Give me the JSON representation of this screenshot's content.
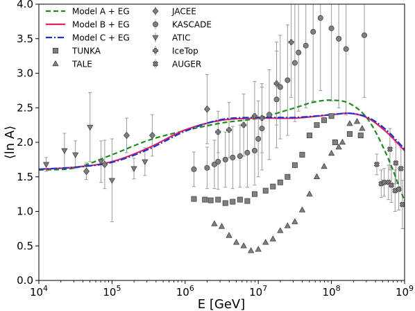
{
  "chart_data": {
    "type": "scatter",
    "title": "",
    "xlabel": "E [GeV]",
    "ylabel": "⟨ln A⟩",
    "xscale": "log",
    "xlim": [
      10000,
      1000000000
    ],
    "ylim": [
      0.0,
      4.0
    ],
    "x_ticks": [
      {
        "value": 10000,
        "base": "10",
        "exp": "4"
      },
      {
        "value": 100000,
        "base": "10",
        "exp": "5"
      },
      {
        "value": 1000000,
        "base": "10",
        "exp": "6"
      },
      {
        "value": 10000000,
        "base": "10",
        "exp": "7"
      },
      {
        "value": 100000000,
        "base": "10",
        "exp": "8"
      },
      {
        "value": 1000000000,
        "base": "10",
        "exp": "9"
      }
    ],
    "y_ticks": [
      "0.0",
      "0.5",
      "1.0",
      "1.5",
      "2.0",
      "2.5",
      "3.0",
      "3.5",
      "4.0"
    ],
    "grid": false,
    "legend_position": "top-left",
    "models": [
      {
        "name": "Model A + EG",
        "color": "#1a8c1a",
        "dash": "dashed",
        "points": [
          [
            4.0,
            1.6
          ],
          [
            4.5,
            1.63
          ],
          [
            5.0,
            1.82
          ],
          [
            5.5,
            2.03
          ],
          [
            6.0,
            2.17
          ],
          [
            6.5,
            2.28
          ],
          [
            7.0,
            2.35
          ],
          [
            7.5,
            2.5
          ],
          [
            7.75,
            2.58
          ],
          [
            8.0,
            2.61
          ],
          [
            8.25,
            2.56
          ],
          [
            8.5,
            2.33
          ],
          [
            8.75,
            1.83
          ],
          [
            9.0,
            1.15
          ]
        ]
      },
      {
        "name": "Model B + EG",
        "color": "#e0245e",
        "dash": "solid",
        "points": [
          [
            4.0,
            1.61
          ],
          [
            4.5,
            1.64
          ],
          [
            5.0,
            1.72
          ],
          [
            5.5,
            1.92
          ],
          [
            6.0,
            2.18
          ],
          [
            6.5,
            2.32
          ],
          [
            7.0,
            2.35
          ],
          [
            7.5,
            2.35
          ],
          [
            8.0,
            2.4
          ],
          [
            8.25,
            2.42
          ],
          [
            8.5,
            2.35
          ],
          [
            8.75,
            2.15
          ],
          [
            9.0,
            1.88
          ]
        ]
      },
      {
        "name": "Model C + EG",
        "color": "#1c2fd6",
        "dash": "dashdot",
        "points": [
          [
            4.0,
            1.61
          ],
          [
            4.5,
            1.64
          ],
          [
            5.0,
            1.71
          ],
          [
            5.5,
            1.9
          ],
          [
            6.0,
            2.16
          ],
          [
            6.5,
            2.33
          ],
          [
            7.0,
            2.36
          ],
          [
            7.5,
            2.36
          ],
          [
            8.0,
            2.4
          ],
          [
            8.25,
            2.42
          ],
          [
            8.5,
            2.36
          ],
          [
            8.75,
            2.18
          ],
          [
            9.0,
            1.9
          ]
        ]
      }
    ],
    "datasets": [
      {
        "name": "TUNKA",
        "marker": "square",
        "points": [
          [
            6.12,
            1.18
          ],
          [
            6.27,
            1.17
          ],
          [
            6.35,
            1.16
          ],
          [
            6.45,
            1.17
          ],
          [
            6.55,
            1.12
          ],
          [
            6.65,
            1.14
          ],
          [
            6.75,
            1.17
          ],
          [
            6.85,
            1.15
          ],
          [
            6.95,
            1.25
          ],
          [
            7.1,
            1.3
          ],
          [
            7.2,
            1.36
          ],
          [
            7.3,
            1.42
          ],
          [
            7.4,
            1.5
          ],
          [
            7.5,
            1.67
          ],
          [
            7.6,
            1.82
          ],
          [
            7.7,
            2.1
          ],
          [
            7.8,
            2.25
          ],
          [
            8.05,
            2.0
          ],
          [
            8.25,
            2.12
          ],
          [
            8.4,
            2.1
          ],
          [
            7.9,
            2.32
          ],
          [
            8.0,
            2.38
          ]
        ]
      },
      {
        "name": "TALE",
        "marker": "triangle-up",
        "points": [
          [
            6.4,
            0.82
          ],
          [
            6.5,
            0.78
          ],
          [
            6.6,
            0.65
          ],
          [
            6.7,
            0.55
          ],
          [
            6.8,
            0.5
          ],
          [
            6.9,
            0.43
          ],
          [
            7.0,
            0.45
          ],
          [
            7.1,
            0.55
          ],
          [
            7.2,
            0.6
          ],
          [
            7.3,
            0.72
          ],
          [
            7.4,
            0.79
          ],
          [
            7.5,
            0.85
          ],
          [
            7.6,
            1.02
          ],
          [
            7.7,
            1.25
          ],
          [
            7.8,
            1.5
          ],
          [
            7.9,
            1.65
          ],
          [
            8.0,
            1.84
          ],
          [
            8.1,
            1.93
          ],
          [
            8.15,
            2.0
          ],
          [
            8.25,
            2.27
          ],
          [
            8.35,
            2.3
          ],
          [
            8.42,
            2.2
          ]
        ]
      },
      {
        "name": "JACEE",
        "marker": "diamond",
        "points": [
          [
            4.65,
            1.58,
            0.12
          ],
          [
            4.9,
            1.68,
            0.35
          ],
          [
            5.2,
            2.1,
            0.25
          ],
          [
            5.55,
            2.1,
            0.3
          ],
          [
            6.3,
            2.48,
            0.5
          ]
        ]
      },
      {
        "name": "KASCADE",
        "marker": "circle",
        "points": [
          [
            6.12,
            1.61,
            0.25
          ],
          [
            6.3,
            1.63,
            0.3
          ],
          [
            6.4,
            1.68,
            0.35
          ],
          [
            6.45,
            1.72,
            0.4
          ],
          [
            6.55,
            1.75,
            0.4
          ],
          [
            6.65,
            1.78,
            0.45
          ],
          [
            6.75,
            1.8,
            0.45
          ],
          [
            6.85,
            1.85,
            0.5
          ],
          [
            6.95,
            1.88,
            0.5
          ],
          [
            7.0,
            2.05,
            0.55
          ],
          [
            7.05,
            2.2,
            0.6
          ],
          [
            7.15,
            2.4,
            0.65
          ],
          [
            7.25,
            2.62,
            0.7
          ],
          [
            7.3,
            2.8,
            0.75
          ],
          [
            7.4,
            2.9,
            0.8
          ],
          [
            7.5,
            3.15,
            0.85
          ],
          [
            7.55,
            3.3,
            0.85
          ],
          [
            7.65,
            3.4,
            0.9
          ],
          [
            7.75,
            3.6,
            1.0
          ],
          [
            7.85,
            3.8,
            1.05
          ],
          [
            8.0,
            3.65,
            1.05
          ],
          [
            8.1,
            3.5,
            1.0
          ],
          [
            8.2,
            3.35,
            0.95
          ],
          [
            8.45,
            3.55,
            0.9
          ]
        ]
      },
      {
        "name": "ATIC",
        "marker": "triangle-down",
        "points": [
          [
            4.1,
            1.68,
            0.1
          ],
          [
            4.35,
            1.88,
            0.25
          ],
          [
            4.5,
            1.82,
            0.2
          ],
          [
            4.7,
            2.22,
            0.5
          ],
          [
            4.85,
            1.72,
            0.3
          ],
          [
            5.0,
            1.45,
            0.6
          ],
          [
            5.3,
            1.62,
            0.15
          ],
          [
            5.45,
            1.72,
            0.2
          ]
        ]
      },
      {
        "name": "IceTop",
        "marker": "plus",
        "points": [
          [
            6.45,
            2.15,
            0.3
          ],
          [
            6.6,
            2.18,
            0.4
          ],
          [
            6.8,
            2.25,
            0.45
          ],
          [
            6.95,
            2.38,
            0.5
          ],
          [
            7.05,
            2.35,
            0.5
          ],
          [
            7.25,
            2.85,
            0.6
          ],
          [
            7.45,
            3.45,
            0.8
          ]
        ]
      },
      {
        "name": "AUGER",
        "marker": "x-filled",
        "points": [
          [
            8.62,
            1.68,
            0.15
          ],
          [
            8.68,
            1.4,
            0.2
          ],
          [
            8.72,
            1.42,
            0.2
          ],
          [
            8.78,
            1.42,
            0.25
          ],
          [
            8.82,
            1.38,
            0.25
          ],
          [
            8.87,
            1.3,
            0.3
          ],
          [
            8.92,
            1.32,
            0.3
          ],
          [
            8.97,
            1.1,
            0.35
          ],
          [
            8.95,
            1.62,
            0.3
          ],
          [
            8.88,
            1.7,
            0.3
          ],
          [
            8.8,
            1.9,
            0.3
          ]
        ]
      }
    ]
  }
}
